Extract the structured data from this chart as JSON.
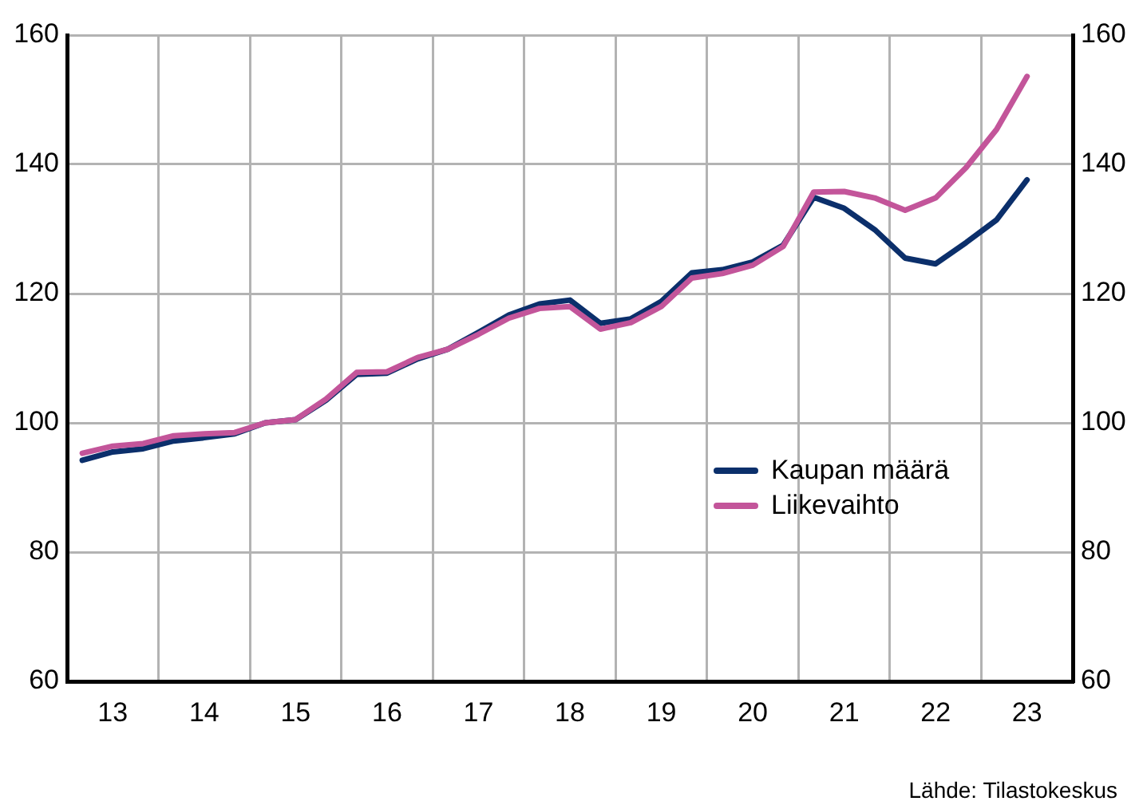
{
  "chart_data": {
    "type": "line",
    "categories": [
      null,
      "13",
      null,
      null,
      "14",
      null,
      null,
      "15",
      null,
      null,
      "16",
      null,
      null,
      "17",
      null,
      null,
      "18",
      null,
      null,
      "19",
      null,
      null,
      "20",
      null,
      null,
      "21",
      null,
      null,
      "22",
      null,
      null,
      "23",
      null
    ],
    "series": [
      {
        "name": "Kaupan määrä",
        "color": "#0b2f6b",
        "values": [
          94.2,
          95.5,
          96.0,
          97.2,
          97.7,
          98.3,
          100.0,
          100.5,
          103.5,
          107.5,
          107.7,
          109.9,
          111.4,
          114.0,
          116.7,
          118.4,
          119.0,
          115.4,
          116.1,
          118.8,
          123.2,
          123.7,
          124.9,
          127.5,
          134.9,
          133.2,
          129.9,
          125.5,
          124.6,
          127.9,
          131.4,
          137.6,
          null
        ]
      },
      {
        "name": "Liikevaihto",
        "color": "#c3559a",
        "values": [
          95.3,
          96.4,
          96.8,
          98.0,
          98.3,
          98.5,
          100.0,
          100.5,
          103.7,
          107.8,
          107.9,
          110.1,
          111.4,
          113.7,
          116.2,
          117.7,
          118.0,
          114.5,
          115.5,
          118.0,
          122.4,
          123.1,
          124.4,
          127.3,
          135.7,
          135.8,
          134.8,
          132.9,
          134.8,
          139.5,
          145.4,
          153.6,
          null
        ]
      }
    ],
    "ylim": [
      60,
      160
    ],
    "yticks": [
      60,
      80,
      100,
      120,
      140,
      160
    ],
    "y2lim": [
      60,
      160
    ],
    "y2ticks": [
      60,
      80,
      100,
      120,
      140,
      160
    ],
    "grid": true,
    "legend": "right",
    "marker": "none",
    "line_style": "solid",
    "annotations": [
      "Lähde: Tilastokeskus"
    ]
  }
}
